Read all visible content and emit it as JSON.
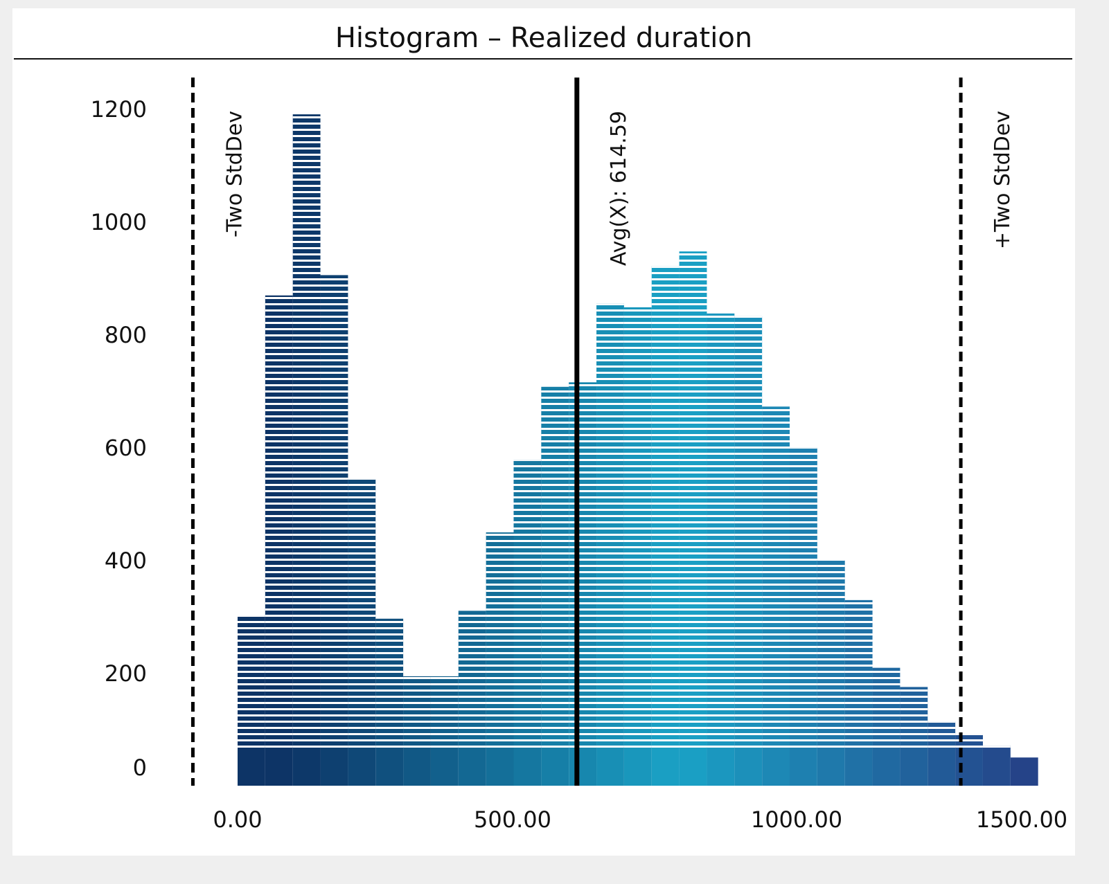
{
  "chart_data": {
    "type": "bar",
    "title": "Histogram – Realized duration",
    "xlabel": "",
    "ylabel": "",
    "bin_width": 50,
    "bin_starts": [
      0,
      50,
      100,
      150,
      200,
      250,
      300,
      350,
      400,
      450,
      500,
      550,
      600,
      650,
      700,
      750,
      800,
      850,
      900,
      950,
      1000,
      1050,
      1100,
      1150,
      1200,
      1250,
      1300,
      1350,
      1400
    ],
    "values": [
      300,
      869,
      1190,
      905,
      543,
      296,
      194,
      194,
      310,
      449,
      577,
      707,
      715,
      855,
      848,
      921,
      947,
      837,
      832,
      672,
      599,
      400,
      329,
      209,
      175,
      114,
      92,
      71,
      50
    ],
    "x_ticks": [
      0,
      500,
      1000,
      1500
    ],
    "x_tick_labels": [
      "0.00",
      "500.00",
      "1000.00",
      "1500.00"
    ],
    "y_ticks": [
      0,
      200,
      400,
      600,
      800,
      1000,
      1200
    ],
    "y_tick_labels": [
      "0",
      "200",
      "400",
      "600",
      "800",
      "1000",
      "1200"
    ],
    "grid": false,
    "legend": "none",
    "reference_lines": [
      {
        "label": "-Two StdDev",
        "x": -81,
        "style": "dashed"
      },
      {
        "label": "Avg(X): 614.59",
        "x": 614.59,
        "style": "solid"
      },
      {
        "label": "+Two StdDev",
        "x": 1310,
        "style": "dashed"
      }
    ],
    "colors": {
      "edge": "#0d3466",
      "center": "#1aa3c6",
      "tail": "#253f85"
    }
  }
}
